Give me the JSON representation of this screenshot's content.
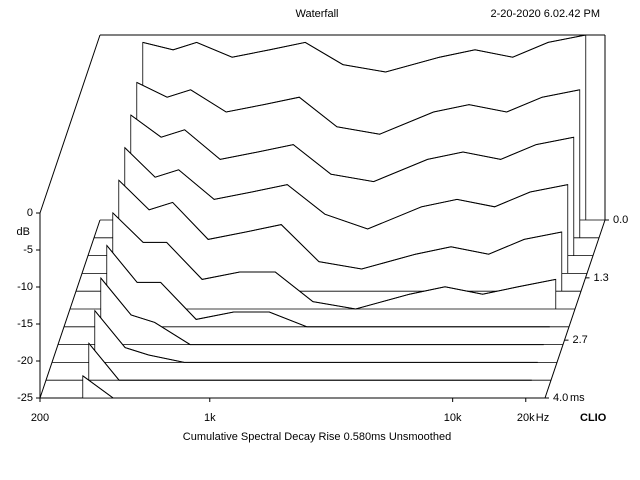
{
  "chart_data": {
    "type": "waterfall",
    "title": "Waterfall",
    "timestamp": "2-20-2020 6.02.42 PM",
    "footer": "Cumulative Spectral Decay   Rise 0.580ms   Unsmoothed",
    "brand": "CLIO",
    "y_label": "dB",
    "x_unit": "Hz",
    "z_unit": "ms",
    "x": [
      300,
      400,
      500,
      700,
      1000,
      1400,
      2000,
      3000,
      5000,
      7000,
      10000,
      14000,
      20000
    ],
    "z": [
      0,
      0.4,
      0.8,
      1.2,
      1.6,
      2.0,
      2.4,
      2.8,
      3.2,
      3.6,
      4.0
    ],
    "series": [
      {
        "values": [
          -1,
          -2,
          -1,
          -3,
          -2,
          -1,
          -4,
          -5,
          -3,
          -2,
          -3,
          -1,
          0
        ]
      },
      {
        "values": [
          -4,
          -6,
          -5,
          -8,
          -7,
          -6,
          -10,
          -11,
          -8,
          -7,
          -8,
          -6,
          -5
        ]
      },
      {
        "values": [
          -6,
          -9,
          -8,
          -12,
          -11,
          -10,
          -14,
          -15,
          -12,
          -11,
          -12,
          -10,
          -9
        ]
      },
      {
        "values": [
          -8,
          -12,
          -11,
          -15,
          -14,
          -13,
          -17,
          -19,
          -16,
          -15,
          -16,
          -14,
          -13
        ]
      },
      {
        "values": [
          -10,
          -14,
          -13,
          -18,
          -17,
          -16,
          -21,
          -22,
          -20,
          -19,
          -20,
          -18,
          -17
        ]
      },
      {
        "values": [
          -12,
          -16,
          -16,
          -21,
          -20,
          -20,
          -24,
          -25,
          -23,
          -22,
          -23,
          -22,
          -21
        ]
      },
      {
        "values": [
          -14,
          -19,
          -19,
          -24,
          -23,
          -23,
          -25,
          -25,
          -25,
          -25,
          -25,
          -25,
          -25
        ]
      },
      {
        "values": [
          -16,
          -21,
          -22,
          -25,
          -25,
          -25,
          -25,
          -25,
          -25,
          -25,
          -25,
          -25,
          -25
        ]
      },
      {
        "values": [
          -18,
          -23,
          -24,
          -25,
          -25,
          -25,
          -25,
          -25,
          -25,
          -25,
          -25,
          -25,
          -25
        ]
      },
      {
        "values": [
          -20,
          -25,
          -25,
          -25,
          -25,
          -25,
          -25,
          -25,
          -25,
          -25,
          -25,
          -25,
          -25
        ]
      },
      {
        "values": [
          -22,
          -25,
          -25,
          -25,
          -25,
          -25,
          -25,
          -25,
          -25,
          -25,
          -25,
          -25,
          -25
        ]
      }
    ],
    "xlim": [
      200,
      24000
    ],
    "xticks": [
      200,
      {
        "value": 1000,
        "label": "1k"
      },
      {
        "value": 10000,
        "label": "10k"
      },
      {
        "value": 20000,
        "label": "20k"
      }
    ],
    "xlog": true,
    "ylim": [
      -25,
      0
    ],
    "yticks": [
      0,
      -5,
      -10,
      -15,
      -20,
      -25
    ],
    "zlim": [
      0,
      4
    ],
    "zticks": [
      {
        "value": 0,
        "label": "0.0"
      },
      1.3,
      2.7,
      {
        "value": 4,
        "label": "4.0"
      }
    ],
    "color": "#000000"
  }
}
